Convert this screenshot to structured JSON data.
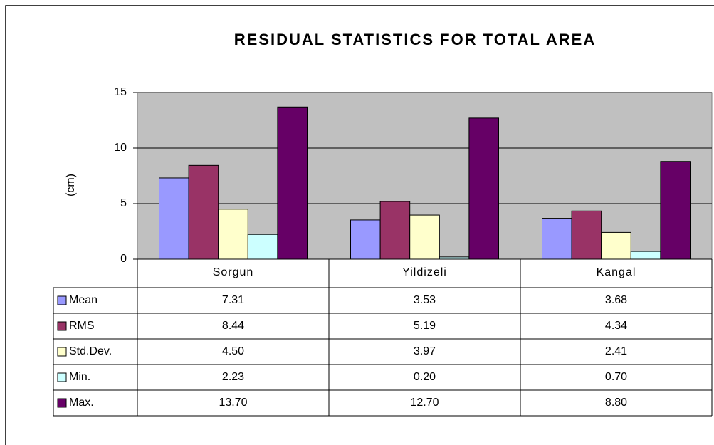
{
  "chart_data": {
    "type": "bar",
    "title": "RESIDUAL STATISTICS FOR TOTAL AREA",
    "y_label": "(cm)",
    "categories": [
      "Sorgun",
      "Yildizeli",
      "Kangal"
    ],
    "series": [
      {
        "name": "Mean",
        "color": "#9999ff",
        "values": [
          7.31,
          3.53,
          3.68
        ],
        "value_labels": [
          "7.31",
          "3.53",
          "3.68"
        ]
      },
      {
        "name": "RMS",
        "color": "#993366",
        "values": [
          8.44,
          5.19,
          4.34
        ],
        "value_labels": [
          "8.44",
          "5.19",
          "4.34"
        ]
      },
      {
        "name": "Std.Dev.",
        "color": "#ffffcc",
        "values": [
          4.5,
          3.97,
          2.41
        ],
        "value_labels": [
          "4.50",
          "3.97",
          "2.41"
        ]
      },
      {
        "name": "Min.",
        "color": "#ccffff",
        "values": [
          2.23,
          0.2,
          0.7
        ],
        "value_labels": [
          "2.23",
          "0.20",
          "0.70"
        ]
      },
      {
        "name": "Max.",
        "color": "#660066",
        "values": [
          13.7,
          12.7,
          8.8
        ],
        "value_labels": [
          "13.70",
          "12.70",
          "8.80"
        ]
      }
    ],
    "ylim": [
      0,
      15
    ],
    "yticks": [
      0,
      5,
      10,
      15
    ],
    "grid": true
  }
}
